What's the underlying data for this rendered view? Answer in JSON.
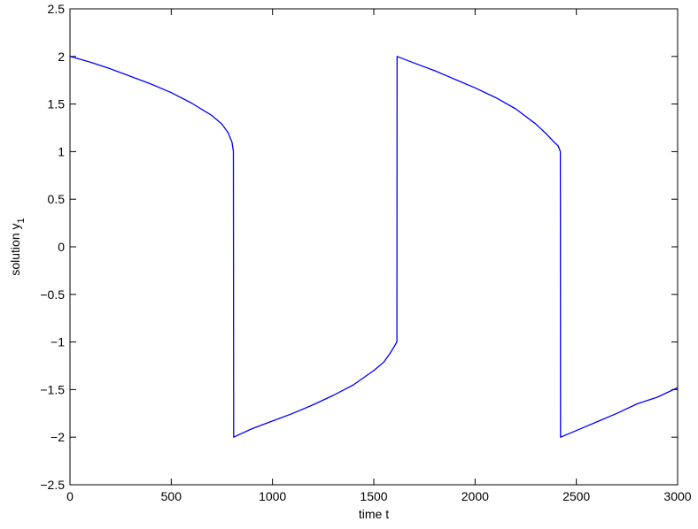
{
  "chart_data": {
    "type": "line",
    "title": "",
    "xlabel": "time t",
    "ylabel": "solution y",
    "ylabel_subscript": "1",
    "xlim": [
      0,
      3000
    ],
    "ylim": [
      -2.5,
      2.5
    ],
    "xticks": [
      0,
      500,
      1000,
      1500,
      2000,
      2500,
      3000
    ],
    "yticks": [
      -2.5,
      -2,
      -1.5,
      -1,
      -0.5,
      0,
      0.5,
      1,
      1.5,
      2,
      2.5
    ],
    "grid": false,
    "box": true,
    "line_color": "#0000ff",
    "series": [
      {
        "x": [
          0,
          100,
          200,
          300,
          400,
          500,
          600,
          700,
          750,
          780,
          800,
          807,
          808,
          900,
          1000,
          1100,
          1200,
          1300,
          1400,
          1500,
          1550,
          1580,
          1600,
          1614,
          1615,
          1700,
          1800,
          1900,
          2000,
          2100,
          2200,
          2300,
          2350,
          2390,
          2410,
          2421,
          2422,
          2500,
          2600,
          2700,
          2800,
          2900,
          3000
        ],
        "y": [
          2.0,
          1.94,
          1.87,
          1.79,
          1.71,
          1.62,
          1.51,
          1.38,
          1.29,
          1.2,
          1.1,
          1.0,
          -2.0,
          -1.91,
          -1.83,
          -1.75,
          -1.66,
          -1.56,
          -1.45,
          -1.3,
          -1.21,
          -1.12,
          -1.05,
          -1.0,
          2.0,
          1.93,
          1.85,
          1.76,
          1.67,
          1.57,
          1.45,
          1.29,
          1.19,
          1.1,
          1.06,
          1.0,
          -2.0,
          -1.93,
          -1.84,
          -1.75,
          -1.65,
          -1.58,
          -1.48
        ]
      }
    ]
  }
}
